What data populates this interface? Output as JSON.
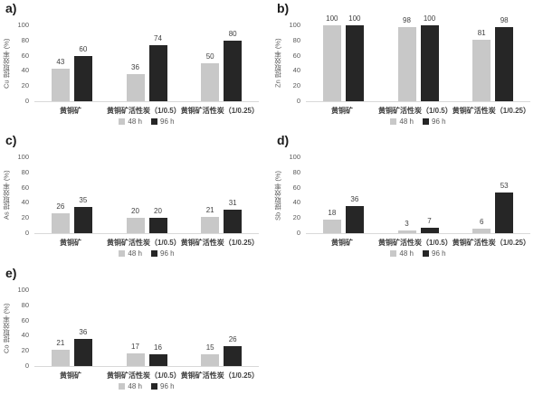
{
  "colors": {
    "series_48h": "#c8c8c8",
    "series_96h": "#262626",
    "baseline": "#d9d9d9",
    "tick_text": "#595959",
    "label_text": "#404040"
  },
  "legend": [
    {
      "label": "48 h",
      "color_key": "series_48h"
    },
    {
      "label": "96 h",
      "color_key": "series_96h"
    }
  ],
  "chart_data": [
    {
      "id": "a",
      "panel_label": "a)",
      "type": "bar",
      "ylabel": "Cu 提取效率 (%)",
      "xlabel": "",
      "ylim": [
        0,
        100
      ],
      "yticks": [
        0,
        20,
        40,
        60,
        80,
        100
      ],
      "grid": false,
      "legend_position": "bottom",
      "categories": [
        "黄铜矿",
        "黄铜矿活性炭（1/0.5）",
        "黄铜矿活性炭（1/0.25）"
      ],
      "series": [
        {
          "name": "48 h",
          "values": [
            43,
            36,
            50
          ]
        },
        {
          "name": "96 h",
          "values": [
            60,
            74,
            80
          ]
        }
      ]
    },
    {
      "id": "b",
      "panel_label": "b)",
      "type": "bar",
      "ylabel": "Zn 提取效率 (%)",
      "xlabel": "",
      "ylim": [
        0,
        100
      ],
      "yticks": [
        0,
        20,
        40,
        60,
        80,
        100
      ],
      "grid": false,
      "legend_position": "bottom",
      "categories": [
        "黄铜矿",
        "黄铜矿活性炭（1/0.5）",
        "黄铜矿活性炭（1/0.25）"
      ],
      "series": [
        {
          "name": "48 h",
          "values": [
            100,
            98,
            81
          ]
        },
        {
          "name": "96 h",
          "values": [
            100,
            100,
            98
          ]
        }
      ]
    },
    {
      "id": "c",
      "panel_label": "c)",
      "type": "bar",
      "ylabel": "As 提取效率 (%)",
      "xlabel": "",
      "ylim": [
        0,
        100
      ],
      "yticks": [
        0,
        20,
        40,
        60,
        80,
        100
      ],
      "grid": false,
      "legend_position": "bottom",
      "categories": [
        "黄铜矿",
        "黄铜矿活性炭（1/0.5）",
        "黄铜矿活性炭（1/0.25）"
      ],
      "series": [
        {
          "name": "48 h",
          "values": [
            26,
            20,
            21
          ]
        },
        {
          "name": "96 h",
          "values": [
            35,
            20,
            31
          ]
        }
      ]
    },
    {
      "id": "d",
      "panel_label": "d)",
      "type": "bar",
      "ylabel": "Sb 提取效率 (%)",
      "xlabel": "",
      "ylim": [
        0,
        100
      ],
      "yticks": [
        0,
        20,
        40,
        60,
        80,
        100
      ],
      "grid": false,
      "legend_position": "bottom",
      "categories": [
        "黄铜矿",
        "黄铜矿活性炭（1/0.5）",
        "黄铜矿活性炭（1/0.25）"
      ],
      "series": [
        {
          "name": "48 h",
          "values": [
            18,
            3,
            6
          ]
        },
        {
          "name": "96 h",
          "values": [
            36,
            7,
            53
          ]
        }
      ]
    },
    {
      "id": "e",
      "panel_label": "e)",
      "type": "bar",
      "ylabel": "Co 提取效率 (%)",
      "xlabel": "",
      "ylim": [
        0,
        100
      ],
      "yticks": [
        0,
        20,
        40,
        60,
        80,
        100
      ],
      "grid": false,
      "legend_position": "bottom",
      "categories": [
        "黄铜矿",
        "黄铜矿活性炭（1/0.5）",
        "黄铜矿活性炭（1/0.25）"
      ],
      "series": [
        {
          "name": "48 h",
          "values": [
            21,
            17,
            15
          ]
        },
        {
          "name": "96 h",
          "values": [
            36,
            16,
            26
          ]
        }
      ]
    }
  ]
}
